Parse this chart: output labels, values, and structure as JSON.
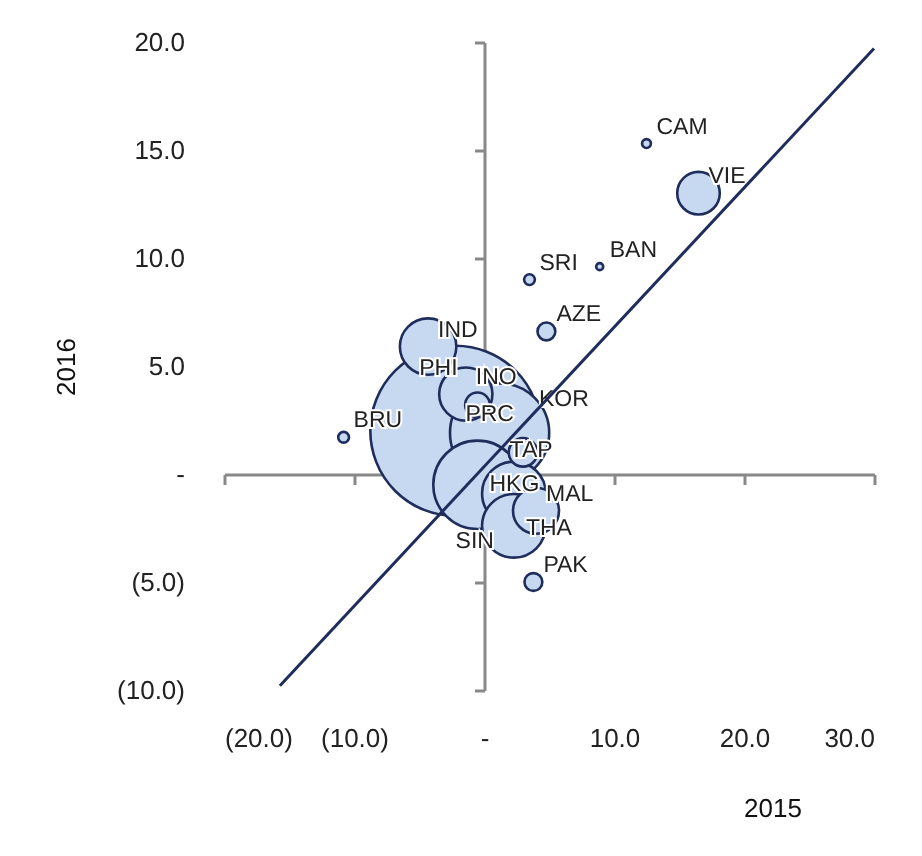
{
  "chart_data": {
    "type": "bubble",
    "xlabel": "2015",
    "ylabel": "2016",
    "xlim": [
      -20,
      30
    ],
    "ylim": [
      -10,
      20
    ],
    "xticks": [
      {
        "value": -20,
        "label": "(20.0)"
      },
      {
        "value": -10,
        "label": "(10.0)"
      },
      {
        "value": 0,
        "label": "-"
      },
      {
        "value": 10,
        "label": "10.0"
      },
      {
        "value": 20,
        "label": "20.0"
      },
      {
        "value": 30,
        "label": "30.0"
      }
    ],
    "yticks": [
      {
        "value": -10,
        "label": "(10.0)"
      },
      {
        "value": -5,
        "label": "(5.0)"
      },
      {
        "value": 0,
        "label": "-"
      },
      {
        "value": 5,
        "label": "5.0"
      },
      {
        "value": 10,
        "label": "10.0"
      },
      {
        "value": 15,
        "label": "15.0"
      },
      {
        "value": 20,
        "label": "20.0"
      }
    ],
    "series": [
      {
        "color": "#c6d9f0",
        "x": [
          -2.2,
          1.2,
          -0.5,
          2.3,
          2.3,
          -4.3,
          -1.4,
          4.0,
          16.5,
          3.0,
          -0.5,
          4.8,
          3.8,
          3.5,
          -10.8,
          12.5,
          8.9
        ],
        "values": [
          2.0,
          1.9,
          -0.5,
          -0.9,
          -2.4,
          5.9,
          3.7,
          -1.7,
          13.0,
          1.0,
          3.2,
          6.6,
          -5.0,
          9.0,
          1.7,
          15.3,
          9.6
        ],
        "sizes": [
          1,
          0.34,
          0.27,
          0.14,
          0.14,
          0.11,
          0.098,
          0.073,
          0.0625,
          0.028,
          0.021,
          0.011,
          0.011,
          0.004,
          0.004,
          0.0027,
          0.0017
        ]
      },
      {
        "type": "line",
        "color": "#1f2d5c",
        "x": [
          -15.7,
          30
        ],
        "values": [
          -9.8,
          19.7
        ]
      }
    ],
    "annotations": [
      {
        "text": "PRC",
        "x": -2.2,
        "y": 2.0
      },
      {
        "text": "TAP",
        "x": 1.2,
        "y": 1.9
      },
      {
        "text": "HKG",
        "x": -0.5,
        "y": -0.5
      },
      {
        "text": "THA",
        "x": 2.3,
        "y": -0.9
      },
      {
        "text": "SIN",
        "x": 2.3,
        "y": -2.4
      },
      {
        "text": "IND",
        "x": -4.3,
        "y": 5.9
      },
      {
        "text": "INO",
        "x": -1.4,
        "y": 3.7
      },
      {
        "text": "MAL",
        "x": 4.0,
        "y": -1.7
      },
      {
        "text": "VIE",
        "x": 16.5,
        "y": 13.0
      },
      {
        "text": "KOR",
        "x": 3.0,
        "y": 1.0
      },
      {
        "text": "PHI",
        "x": -0.5,
        "y": 3.2
      },
      {
        "text": "AZE",
        "x": 4.8,
        "y": 6.6
      },
      {
        "text": "PAK",
        "x": 3.8,
        "y": -5.0
      },
      {
        "text": "SRI",
        "x": 3.5,
        "y": 9.0
      },
      {
        "text": "BRU",
        "x": -10.8,
        "y": 1.7
      },
      {
        "text": "CAM",
        "x": 12.5,
        "y": 15.3
      },
      {
        "text": "BAN",
        "x": 8.9,
        "y": 9.6
      }
    ]
  }
}
